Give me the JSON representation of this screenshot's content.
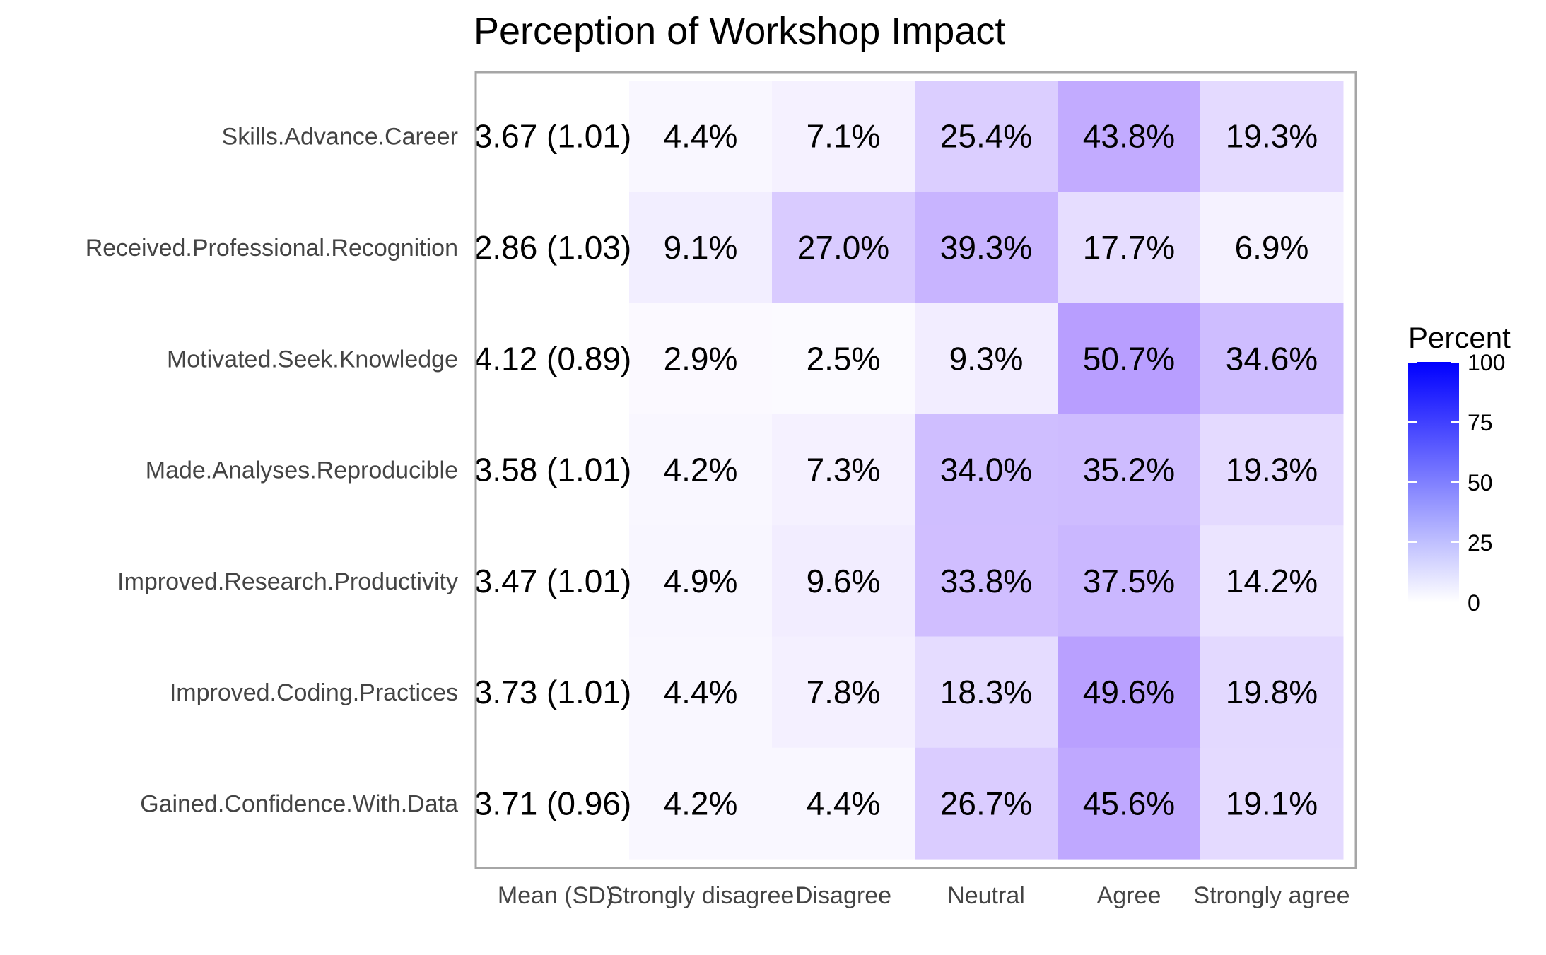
{
  "chart_data": {
    "type": "heatmap",
    "title": "Perception of Workshop Impact",
    "xlabel": "",
    "ylabel": "",
    "columns": [
      "Mean (SD)",
      "Strongly disagree",
      "Disagree",
      "Neutral",
      "Agree",
      "Strongly agree"
    ],
    "rows": [
      {
        "label": "Skills.Advance.Career",
        "mean_sd": "3.67 (1.01)",
        "values": [
          4.4,
          7.1,
          25.4,
          43.8,
          19.3
        ]
      },
      {
        "label": "Received.Professional.Recognition",
        "mean_sd": "2.86 (1.03)",
        "values": [
          9.1,
          27.0,
          39.3,
          17.7,
          6.9
        ]
      },
      {
        "label": "Motivated.Seek.Knowledge",
        "mean_sd": "4.12 (0.89)",
        "values": [
          2.9,
          2.5,
          9.3,
          50.7,
          34.6
        ]
      },
      {
        "label": "Made.Analyses.Reproducible",
        "mean_sd": "3.58 (1.01)",
        "values": [
          4.2,
          7.3,
          34.0,
          35.2,
          19.3
        ]
      },
      {
        "label": "Improved.Research.Productivity",
        "mean_sd": "3.47 (1.01)",
        "values": [
          4.9,
          9.6,
          33.8,
          37.5,
          14.2
        ]
      },
      {
        "label": "Improved.Coding.Practices",
        "mean_sd": "3.73 (1.01)",
        "values": [
          4.4,
          7.8,
          18.3,
          49.6,
          19.8
        ]
      },
      {
        "label": "Gained.Confidence.With.Data",
        "mean_sd": "3.71 (0.96)",
        "values": [
          4.2,
          4.4,
          26.7,
          45.6,
          19.1
        ]
      }
    ],
    "legend": {
      "title": "Percent",
      "ticks": [
        0,
        25,
        50,
        75,
        100
      ],
      "range": [
        0,
        100
      ],
      "low_color": "#ffffff",
      "high_color": "#0000ff",
      "placement": "right"
    },
    "panel_border_color": "#a6a6a6"
  }
}
